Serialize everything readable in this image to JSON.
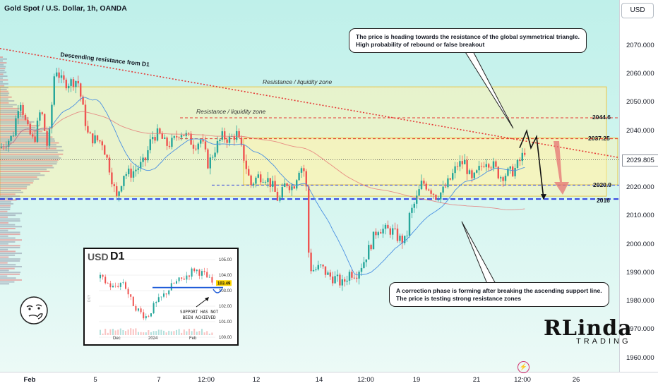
{
  "header": {
    "title": "Gold Spot / U.S. Dollar, 1h, OANDA",
    "currency_button": "USD"
  },
  "annotations": {
    "top_note": [
      "The price is heading towards the resistance of the global symmetrical triangle.",
      "High probability of rebound or false breakout"
    ],
    "bottom_note": [
      "A correction phase is forming after breaking the ascending support line.",
      "The price is testing strong resistance zones"
    ],
    "trendline_label": "Descending resistance from D1",
    "zone_label_upper": "Resistance / liquidity zone",
    "zone_label_inner": "Resistance / liquidity zone"
  },
  "levels": {
    "l2044": "2044.6",
    "l2037": "2037.25",
    "l2020": "2020.9",
    "l2016": "2016"
  },
  "current_price": "2029.805",
  "inset": {
    "currency": "USD",
    "timeframe": "D1",
    "support_note": [
      "SUPPORT HAS NOT",
      "BEEN ACHIEVED"
    ],
    "price_tag": "103.49",
    "y_ticks": [
      "105.00",
      "104.00",
      "103.00",
      "102.00",
      "101.00",
      "100.00"
    ],
    "x_ticks": [
      "Dec",
      "2024",
      "Feb"
    ],
    "ylabel_text": "DXY"
  },
  "logo": {
    "main": "RLinda",
    "sub": "TRADING"
  },
  "colors": {
    "bull": "#26a69a",
    "bear": "#ef5350",
    "sma_fast": "#4a90e2",
    "sma_slow": "#e57373",
    "dashed_red": "#e53935",
    "dashed_blue": "#2f3fe0",
    "zone_fill": "#fff3b0",
    "zone_border": "#e8c64a"
  },
  "chart_data": {
    "type": "candlestick",
    "symbol": "XAUUSD",
    "timeframe": "1h",
    "ylim": [
      1955,
      2080
    ],
    "y_ticks": [
      2070.0,
      2060.0,
      2050.0,
      2040.0,
      2030.0,
      2020.0,
      2010.0,
      2000.0,
      1990.0,
      1980.0,
      1970.0,
      1960.0
    ],
    "x_ticks": [
      "Feb",
      "5",
      "7",
      "12:00",
      "12",
      "14",
      "12:00",
      "19",
      "21",
      "12:00",
      "26"
    ],
    "price_path": [
      [
        0,
        2034
      ],
      [
        8,
        2036
      ],
      [
        18,
        2038
      ],
      [
        28,
        2052
      ],
      [
        38,
        2041
      ],
      [
        48,
        2036
      ],
      [
        58,
        2048
      ],
      [
        68,
        2033
      ],
      [
        78,
        2063
      ],
      [
        88,
        2057
      ],
      [
        98,
        2057
      ],
      [
        110,
        2058
      ],
      [
        118,
        2047
      ],
      [
        125,
        2038
      ],
      [
        135,
        2037
      ],
      [
        145,
        2036
      ],
      [
        155,
        2027
      ],
      [
        165,
        2016
      ],
      [
        175,
        2025
      ],
      [
        185,
        2025
      ],
      [
        195,
        2027
      ],
      [
        205,
        2029
      ],
      [
        215,
        2038
      ],
      [
        225,
        2039
      ],
      [
        235,
        2035
      ],
      [
        245,
        2036
      ],
      [
        255,
        2040
      ],
      [
        265,
        2038
      ],
      [
        275,
        2035
      ],
      [
        285,
        2037
      ],
      [
        295,
        2028
      ],
      [
        305,
        2034
      ],
      [
        315,
        2038
      ],
      [
        325,
        2037
      ],
      [
        335,
        2039
      ],
      [
        345,
        2031
      ],
      [
        355,
        2021
      ],
      [
        365,
        2024
      ],
      [
        375,
        2024
      ],
      [
        385,
        2021
      ],
      [
        395,
        2015
      ],
      [
        405,
        2022
      ],
      [
        415,
        2020
      ],
      [
        425,
        2028
      ],
      [
        433,
        2025
      ],
      [
        438,
        1992
      ],
      [
        445,
        1991
      ],
      [
        455,
        1992
      ],
      [
        465,
        1989
      ],
      [
        475,
        1988
      ],
      [
        485,
        1986
      ],
      [
        495,
        1990
      ],
      [
        505,
        1990
      ],
      [
        515,
        1994
      ],
      [
        525,
        2000
      ],
      [
        535,
        2006
      ],
      [
        545,
        2005
      ],
      [
        555,
        2005
      ],
      [
        565,
        2002
      ],
      [
        575,
        2001
      ],
      [
        580,
        2010
      ],
      [
        590,
        2016
      ],
      [
        598,
        2022
      ],
      [
        608,
        2020
      ],
      [
        618,
        2017
      ],
      [
        628,
        2019
      ],
      [
        638,
        2023
      ],
      [
        648,
        2028
      ],
      [
        658,
        2029
      ],
      [
        668,
        2022
      ],
      [
        678,
        2026
      ],
      [
        688,
        2030
      ],
      [
        698,
        2028
      ],
      [
        708,
        2024
      ],
      [
        718,
        2025
      ],
      [
        728,
        2026
      ],
      [
        738,
        2030
      ],
      [
        746,
        2035
      ]
    ],
    "projection": [
      [
        736,
        2034
      ],
      [
        746,
        2040
      ],
      [
        752,
        2034
      ],
      [
        760,
        2038
      ],
      [
        770,
        2016
      ]
    ],
    "levels": [
      {
        "price": 2044.6,
        "style": "dashed",
        "color": "red"
      },
      {
        "price": 2037.25,
        "style": "dashed",
        "color": "red"
      },
      {
        "price": 2020.9,
        "style": "dashed",
        "color": "blue"
      },
      {
        "price": 2016,
        "style": "dashed-thick",
        "color": "blue"
      }
    ],
    "zones": [
      {
        "from": 2017,
        "to": 2055.5
      },
      {
        "from": 2021,
        "to": 2037.5
      }
    ],
    "trendline": {
      "from": [
        0,
        2069
      ],
      "to": [
        877,
        2030.6
      ]
    },
    "last_price": 2029.805
  }
}
